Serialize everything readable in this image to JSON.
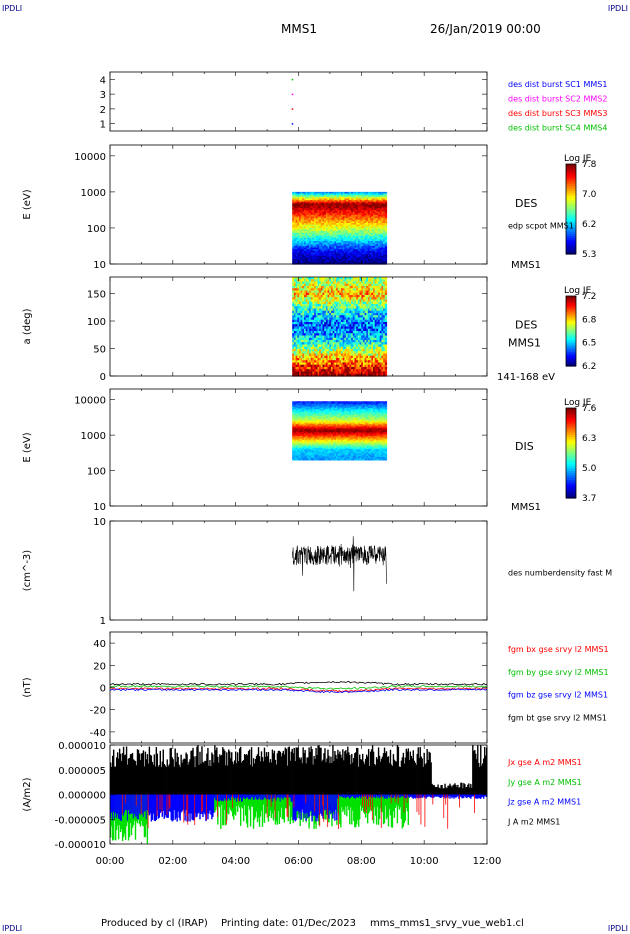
{
  "header": {
    "corner_label": "IPDLI",
    "mission": "MMS1",
    "date": "26/Jan/2019 00:00"
  },
  "footer": {
    "produced_by": "Produced by cl (IRAP)",
    "printing_date": "Printing date: 01/Dec/2023",
    "filename": "mms_mms1_srvy_vue_web1.cl"
  },
  "chart_data": [
    {
      "type": "scatter",
      "panel": "burst",
      "ylim": [
        0.5,
        4.5
      ],
      "yticks": [
        "1",
        "2",
        "3",
        "4"
      ],
      "points": [
        {
          "x": 5.8,
          "y": 4,
          "color": "#00c000"
        },
        {
          "x": 5.8,
          "y": 3,
          "color": "#ff00ff"
        },
        {
          "x": 5.8,
          "y": 2,
          "color": "#ff0000"
        },
        {
          "x": 5.8,
          "y": 1,
          "color": "#0000ff"
        }
      ],
      "legend": [
        {
          "label": "des dist burst SC1 MMS1",
          "color": "#0000ff"
        },
        {
          "label": "des dist burst SC2 MMS2",
          "color": "#ff00ff"
        },
        {
          "label": "des dist burst SC3 MMS3",
          "color": "#ff0000"
        },
        {
          "label": "des dist burst SC4 MMS4",
          "color": "#00c000"
        }
      ]
    },
    {
      "type": "heatmap",
      "panel": "des-energy",
      "ylabel": "E (eV)",
      "ylim": [
        10,
        20000
      ],
      "log": true,
      "yticks": [
        "10",
        "100",
        "1000",
        "10000"
      ],
      "time_range": [
        5.8,
        8.8
      ],
      "data_range": [
        10,
        1000
      ],
      "profile": [
        6.0,
        7.8,
        7.3,
        6.8,
        6.2,
        5.6,
        5.3
      ],
      "species": "DES",
      "label2": "edp scpot MMS1",
      "label3": "MMS1",
      "colorbar": {
        "title": "Log JE",
        "min": 5.3,
        "max": 7.8,
        "ticks": [
          "7.8",
          "7.0",
          "6.2",
          "5.3"
        ]
      }
    },
    {
      "type": "heatmap",
      "panel": "des-pitch",
      "ylabel": "a (deg)",
      "ylim": [
        0,
        180
      ],
      "log": false,
      "yticks": [
        "0",
        "50",
        "100",
        "150"
      ],
      "time_range": [
        5.8,
        8.8
      ],
      "data_range": [
        0,
        180
      ],
      "profile": [
        6.7,
        6.9,
        6.6,
        6.4,
        6.6,
        6.9,
        7.2
      ],
      "species": "DES",
      "label2": "MMS1",
      "label3": "141-168 eV",
      "colorbar": {
        "title": "Log JE",
        "min": 6.2,
        "max": 7.2,
        "ticks": [
          "7.2",
          "6.8",
          "6.5",
          "6.2"
        ]
      }
    },
    {
      "type": "heatmap",
      "panel": "dis-energy",
      "ylabel": "E (eV)",
      "ylim": [
        10,
        20000
      ],
      "log": true,
      "yticks": [
        "10",
        "100",
        "1000",
        "10000"
      ],
      "time_range": [
        5.8,
        8.8
      ],
      "data_range": [
        200,
        9000
      ],
      "profile": [
        4.3,
        5.2,
        6.0,
        7.6,
        6.3,
        5.0,
        4.8
      ],
      "species": "DIS",
      "label2": "",
      "label3": "MMS1",
      "colorbar": {
        "title": "Log JE",
        "min": 3.7,
        "max": 7.6,
        "ticks": [
          "7.6",
          "6.3",
          "5.0",
          "3.7"
        ]
      }
    },
    {
      "type": "line",
      "panel": "density",
      "ylabel": "(cm^-3)",
      "ylim": [
        1,
        10
      ],
      "log": true,
      "yticks": [
        "1",
        "10"
      ],
      "time_range": [
        5.8,
        8.8
      ],
      "level": 4.6,
      "legend": [
        {
          "label": "des numberdensity fast M",
          "color": "#000000"
        }
      ]
    },
    {
      "type": "line",
      "panel": "magnetic-field",
      "ylabel": "(nT)",
      "ylim": [
        -50,
        50
      ],
      "yticks": [
        "-40",
        "-20",
        "0",
        "20",
        "40"
      ],
      "series_levels": [
        -1,
        1,
        -2,
        3
      ],
      "legend": [
        {
          "label": "fgm bx gse srvy l2 MMS1",
          "color": "#ff0000"
        },
        {
          "label": "fgm by gse srvy l2 MMS1",
          "color": "#00c000"
        },
        {
          "label": "fgm bz gse srvy l2 MMS1",
          "color": "#0000ff"
        },
        {
          "label": "fgm bt gse srvy l2 MMS1",
          "color": "#000000"
        }
      ]
    },
    {
      "type": "area",
      "panel": "current-density",
      "ylabel": "(A/m2)",
      "ylim": [
        -1e-05,
        1e-05
      ],
      "yticks": [
        "-0.000010",
        "-0.000005",
        "0.000000",
        "0.000005",
        "0.000010"
      ],
      "legend": [
        {
          "label": "Jx gse A m2 MMS1",
          "color": "#ff0000"
        },
        {
          "label": "Jy gse A m2 MMS1",
          "color": "#00c000"
        },
        {
          "label": "Jz gse A m2 MMS1",
          "color": "#0000ff"
        },
        {
          "label": "J A m2 MMS1",
          "color": "#000000"
        }
      ]
    }
  ],
  "time_axis": {
    "range": [
      0,
      12
    ],
    "ticks": [
      "00:00",
      "02:00",
      "04:00",
      "06:00",
      "08:00",
      "10:00",
      "12:00"
    ]
  }
}
